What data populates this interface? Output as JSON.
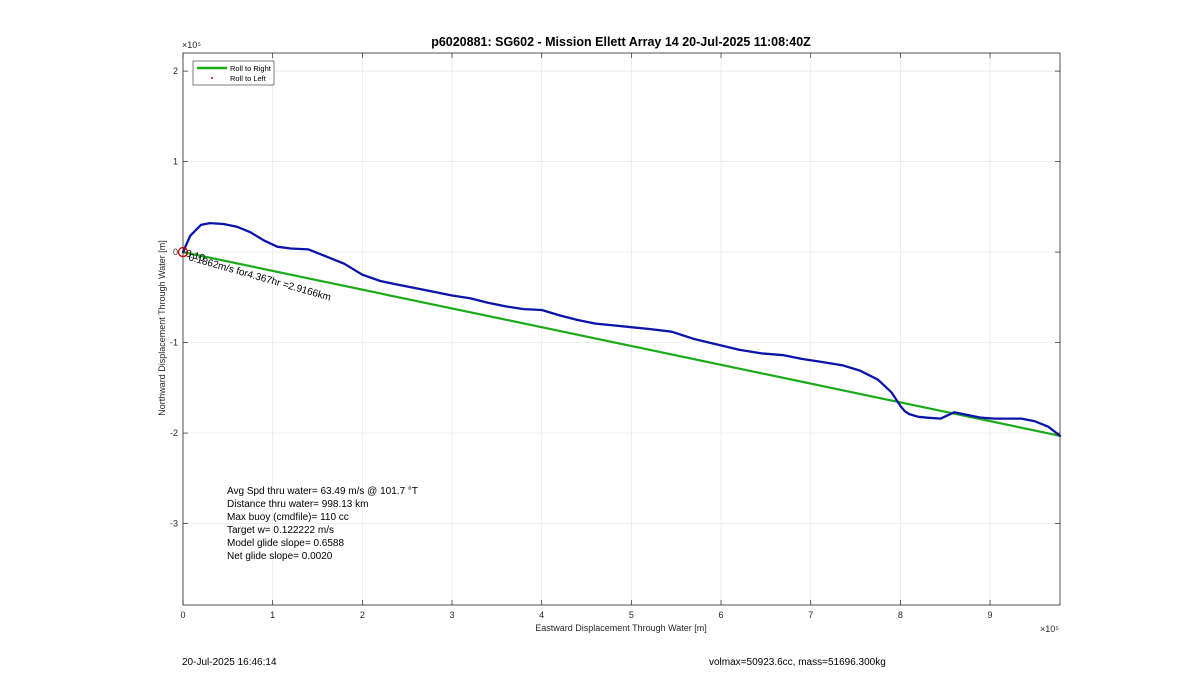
{
  "chart_data": {
    "type": "line",
    "title": "p6020881: SG602 - Mission Ellett Array 14 20-Jul-2025 11:08:40Z",
    "xlabel": "Eastward Displacement Through Water [m]",
    "ylabel": "Northward Displacement Through Water [m]",
    "x_exponent_label": "×10⁵",
    "y_exponent_label": "×10⁵",
    "xlim": [
      0,
      9.78
    ],
    "ylim": [
      -3.9,
      2.2
    ],
    "xticks": [
      0,
      1,
      2,
      3,
      4,
      5,
      6,
      7,
      8,
      9
    ],
    "yticks": [
      -3,
      -2,
      -1,
      0,
      1,
      2
    ],
    "scale_exponent": 5,
    "grid": true,
    "legend": {
      "placement": "top-left",
      "entries": [
        "Roll to Right",
        "Roll to Left"
      ]
    },
    "series": [
      {
        "name": "Roll to Right",
        "color": "#1aaa1a",
        "x": [
          0,
          9.78
        ],
        "y": [
          0,
          -2.03
        ]
      },
      {
        "name": "",
        "color": "#0a14a8",
        "x": [
          0,
          0.08,
          0.2,
          0.3,
          0.45,
          0.6,
          0.75,
          0.9,
          1.05,
          1.2,
          1.4,
          1.6,
          1.8,
          2.0,
          2.2,
          2.4,
          2.6,
          2.8,
          3.0,
          3.2,
          3.4,
          3.6,
          3.8,
          4.0,
          4.2,
          4.4,
          4.6,
          4.8,
          5.0,
          5.2,
          5.45,
          5.7,
          5.95,
          6.2,
          6.45,
          6.7,
          6.9,
          7.1,
          7.35,
          7.55,
          7.75,
          7.9,
          8.0,
          8.05,
          8.1,
          8.2,
          8.3,
          8.45,
          8.6,
          8.75,
          8.9,
          9.05,
          9.2,
          9.35,
          9.5,
          9.65,
          9.78
        ],
        "y": [
          0,
          0.18,
          0.3,
          0.32,
          0.31,
          0.28,
          0.22,
          0.13,
          0.06,
          0.04,
          0.03,
          -0.05,
          -0.13,
          -0.25,
          -0.32,
          -0.36,
          -0.4,
          -0.44,
          -0.48,
          -0.51,
          -0.56,
          -0.6,
          -0.63,
          -0.64,
          -0.7,
          -0.75,
          -0.79,
          -0.81,
          -0.83,
          -0.85,
          -0.88,
          -0.96,
          -1.02,
          -1.08,
          -1.12,
          -1.14,
          -1.18,
          -1.21,
          -1.25,
          -1.31,
          -1.41,
          -1.55,
          -1.7,
          -1.76,
          -1.79,
          -1.82,
          -1.83,
          -1.84,
          -1.77,
          -1.8,
          -1.83,
          -1.84,
          -1.84,
          -1.84,
          -1.87,
          -1.93,
          -2.03
        ]
      }
    ],
    "annotations": {
      "speed_label": "0.1862m/s for4.367hr =2.9166km",
      "speed_label_overlap": "0.10",
      "start_marker_color": "#cc0000"
    },
    "stats": [
      "Avg Spd thru water= 63.49 m/s @ 101.7 °T",
      "Distance thru water= 998.13 km",
      "Max buoy (cmdfile)= 110 cc",
      "Target w= 0.122222 m/s",
      "Model glide slope= 0.6588",
      "Net glide slope= 0.0020"
    ]
  },
  "footer": {
    "timestamp": "20-Jul-2025 16:46:14",
    "mass_info": "volmax=50923.6cc, mass=51696.300kg"
  }
}
